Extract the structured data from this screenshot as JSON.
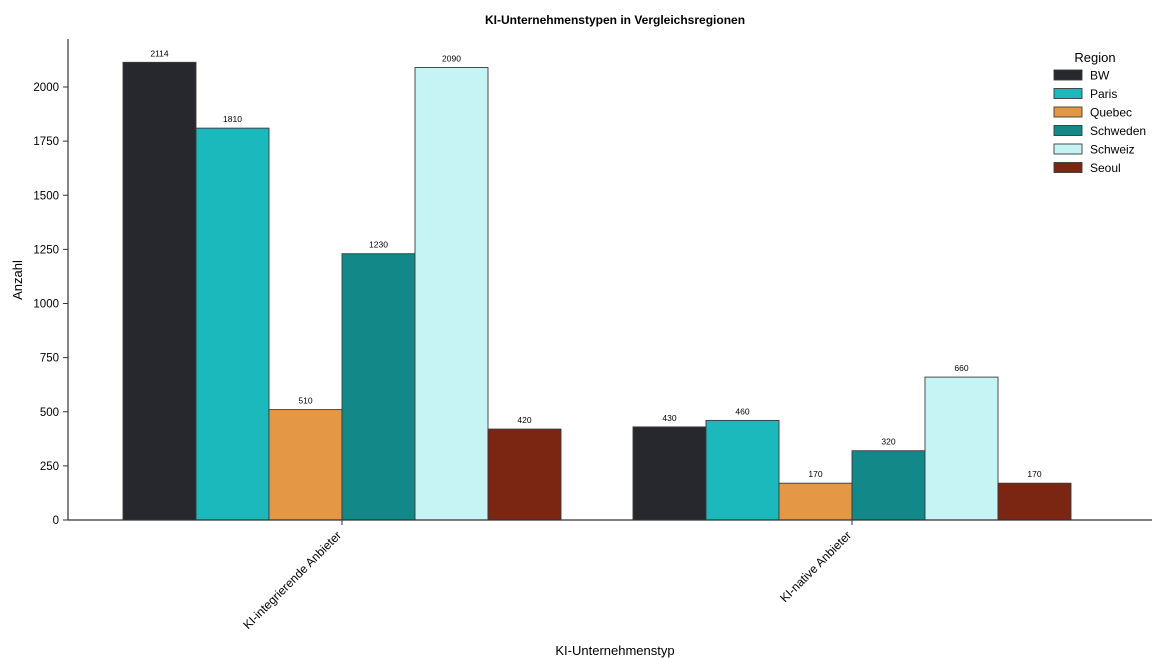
{
  "chart_data": {
    "type": "bar",
    "title": "KI-Unternehmenstypen in Vergleichsregionen",
    "xlabel": "KI-Unternehmenstyp",
    "ylabel": "Anzahl",
    "categories": [
      "KI-integrierende Anbieter",
      "KI-native Anbieter"
    ],
    "series": [
      {
        "name": "BW",
        "color": "#27282d",
        "values": [
          2114,
          430
        ]
      },
      {
        "name": "Paris",
        "color": "#1bb8bc",
        "values": [
          1810,
          460
        ]
      },
      {
        "name": "Quebec",
        "color": "#e49744",
        "values": [
          510,
          170
        ]
      },
      {
        "name": "Schweden",
        "color": "#128889",
        "values": [
          1230,
          320
        ]
      },
      {
        "name": "Schweiz",
        "color": "#c6f3f3",
        "values": [
          2090,
          660
        ]
      },
      {
        "name": "Seoul",
        "color": "#7a2612",
        "values": [
          420,
          170
        ]
      }
    ],
    "ylim": [
      0,
      2200
    ],
    "yticks": [
      0,
      250,
      500,
      750,
      1000,
      1250,
      1500,
      1750,
      2000
    ],
    "legend": {
      "title": "Region",
      "placement": "top-right"
    },
    "grid": false
  }
}
